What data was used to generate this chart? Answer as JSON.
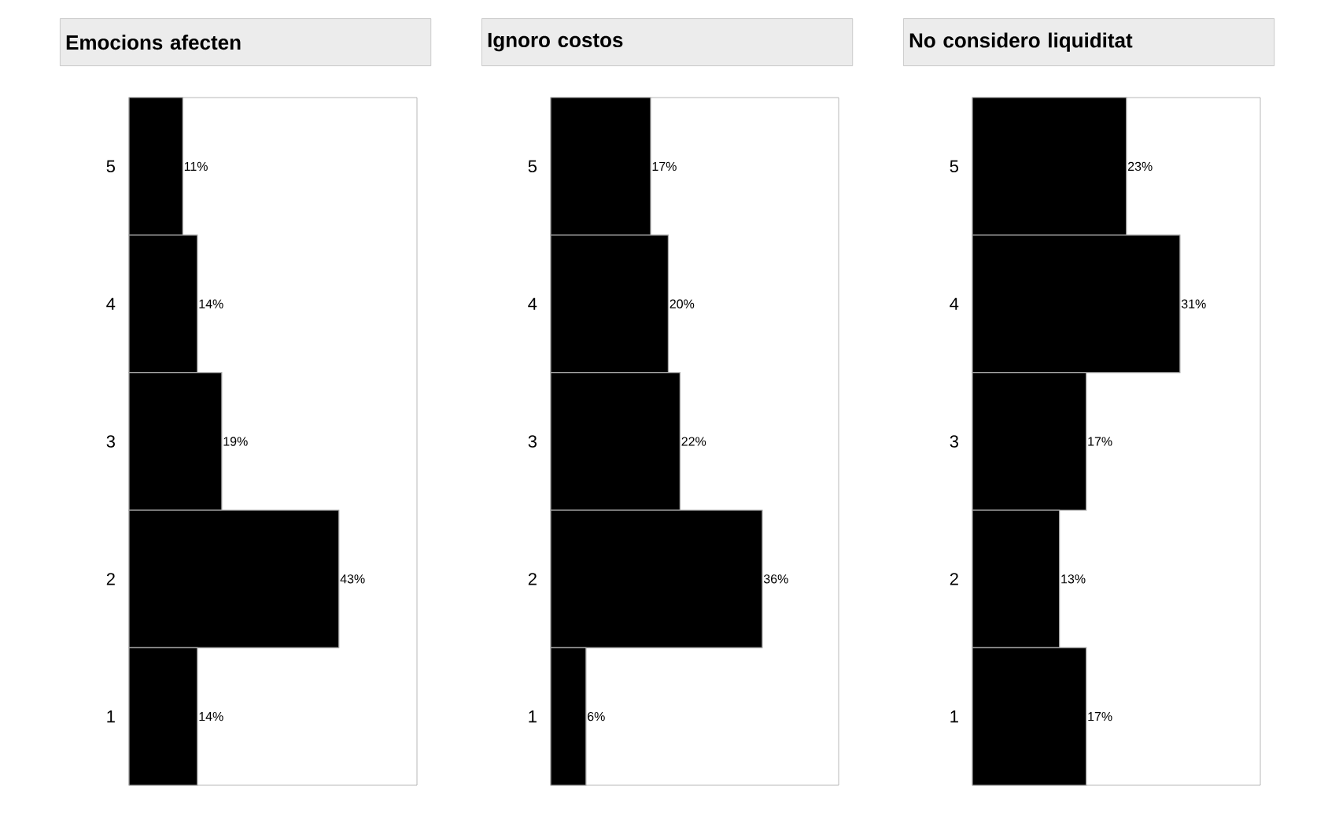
{
  "chart_data": [
    {
      "type": "bar",
      "orientation": "horizontal",
      "title": "Emocions afecten",
      "categories": [
        "5",
        "4",
        "3",
        "2",
        "1"
      ],
      "values": [
        11,
        14,
        19,
        43,
        14
      ],
      "value_labels": [
        "11%",
        "14%",
        "19%",
        "43%",
        "14%"
      ],
      "color": "#000000",
      "xlim": [
        0,
        59
      ],
      "tick_labels": "y"
    },
    {
      "type": "bar",
      "orientation": "horizontal",
      "title": "Ignoro costos",
      "categories": [
        "5",
        "4",
        "3",
        "2",
        "1"
      ],
      "values": [
        17,
        20,
        22,
        36,
        6
      ],
      "value_labels": [
        "17%",
        "20%",
        "22%",
        "36%",
        "6%"
      ],
      "color": "#000000",
      "xlim": [
        0,
        49
      ],
      "tick_labels": "y"
    },
    {
      "type": "bar",
      "orientation": "horizontal",
      "title": "No considero liquiditat",
      "categories": [
        "5",
        "4",
        "3",
        "2",
        "1"
      ],
      "values": [
        23,
        31,
        17,
        13,
        17
      ],
      "value_labels": [
        "23%",
        "31%",
        "17%",
        "13%",
        "17%"
      ],
      "color": "#000000",
      "xlim": [
        0,
        43
      ],
      "tick_labels": "y"
    }
  ]
}
